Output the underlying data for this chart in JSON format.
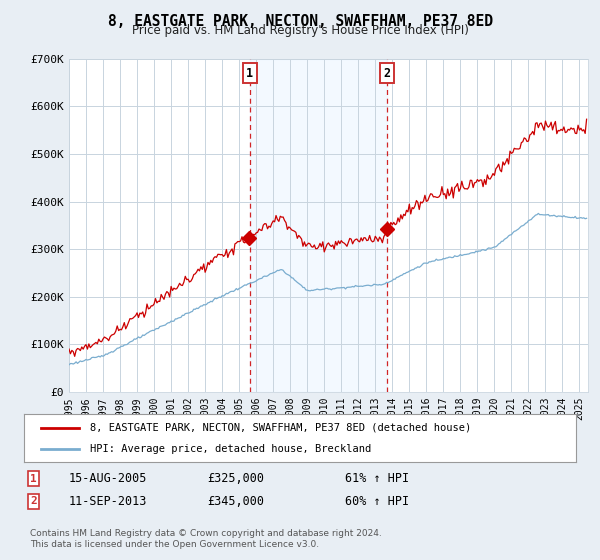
{
  "title": "8, EASTGATE PARK, NECTON, SWAFFHAM, PE37 8ED",
  "subtitle": "Price paid vs. HM Land Registry's House Price Index (HPI)",
  "ylabel_ticks": [
    "£0",
    "£100K",
    "£200K",
    "£300K",
    "£400K",
    "£500K",
    "£600K",
    "£700K"
  ],
  "ylim": [
    0,
    700000
  ],
  "xlim_start": 1995.0,
  "xlim_end": 2025.5,
  "sale1_date": 2005.62,
  "sale1_price": 325000,
  "sale2_date": 2013.7,
  "sale2_price": 345000,
  "line_color_red": "#cc0000",
  "line_color_blue": "#7aadcf",
  "dashed_color": "#cc0000",
  "shade_color": "#ddeeff",
  "legend_label1": "8, EASTGATE PARK, NECTON, SWAFFHAM, PE37 8ED (detached house)",
  "legend_label2": "HPI: Average price, detached house, Breckland",
  "annotation1_date": "15-AUG-2005",
  "annotation1_price": "£325,000",
  "annotation1_hpi": "61% ↑ HPI",
  "annotation2_date": "11-SEP-2013",
  "annotation2_price": "£345,000",
  "annotation2_hpi": "60% ↑ HPI",
  "footer": "Contains HM Land Registry data © Crown copyright and database right 2024.\nThis data is licensed under the Open Government Licence v3.0.",
  "background_color": "#e8eef4",
  "plot_bg_color": "#ffffff",
  "grid_color": "#c8d4de"
}
